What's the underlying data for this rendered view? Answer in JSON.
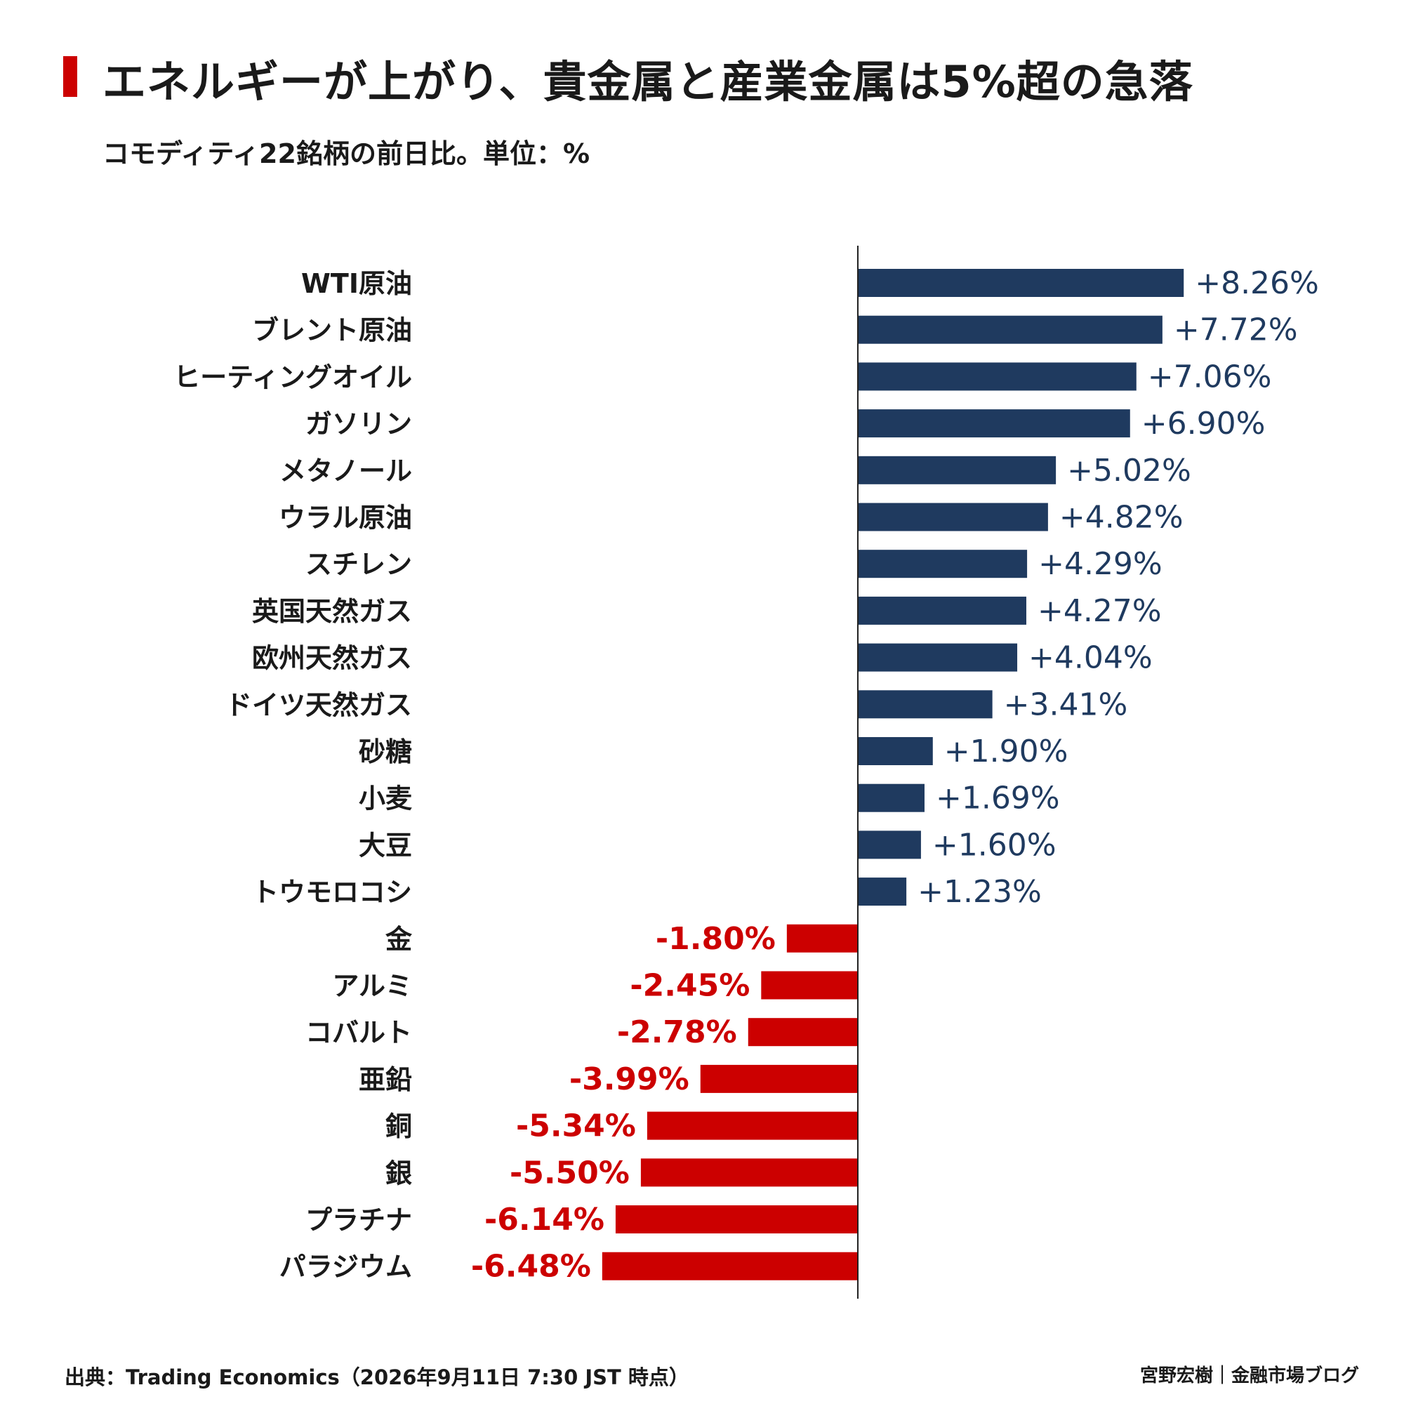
{
  "title": "エネルギーが上がり、貴金属と産業金属は5%超の急落",
  "subtitle": "コモディティ22銘柄の前日比。単位：%",
  "footer": {
    "source": "出典：Trading Economics（2026年9月11日 7:30 JST 時点）",
    "brand": "宮野宏樹｜金融市場ブログ"
  },
  "colors": {
    "accent": "#cc0000",
    "positive": "#1f3a5f",
    "negative": "#cc0000",
    "axis": "#222222"
  },
  "chart_data": {
    "type": "bar",
    "orientation": "horizontal",
    "categories": [
      "WTI原油",
      "ブレント原油",
      "ヒーティングオイル",
      "ガソリン",
      "メタノール",
      "ウラル原油",
      "スチレン",
      "英国天然ガス",
      "欧州天然ガス",
      "ドイツ天然ガス",
      "砂糖",
      "小麦",
      "大豆",
      "トウモロコシ",
      "金",
      "アルミ",
      "コバルト",
      "亜鉛",
      "銅",
      "銀",
      "プラチナ",
      "パラジウム"
    ],
    "values": [
      8.26,
      7.72,
      7.06,
      6.9,
      5.02,
      4.82,
      4.29,
      4.27,
      4.04,
      3.41,
      1.9,
      1.69,
      1.6,
      1.23,
      -1.8,
      -2.45,
      -2.78,
      -3.99,
      -5.34,
      -5.5,
      -6.14,
      -6.48
    ],
    "value_labels": [
      "+8.26%",
      "+7.72%",
      "+7.06%",
      "+6.90%",
      "+5.02%",
      "+4.82%",
      "+4.29%",
      "+4.27%",
      "+4.04%",
      "+3.41%",
      "+1.90%",
      "+1.69%",
      "+1.60%",
      "+1.23%",
      "-1.80%",
      "-2.45%",
      "-2.78%",
      "-3.99%",
      "-5.34%",
      "-5.50%",
      "-6.14%",
      "-6.48%"
    ],
    "xlim": [
      -6.5,
      8.3
    ],
    "grid": false
  }
}
